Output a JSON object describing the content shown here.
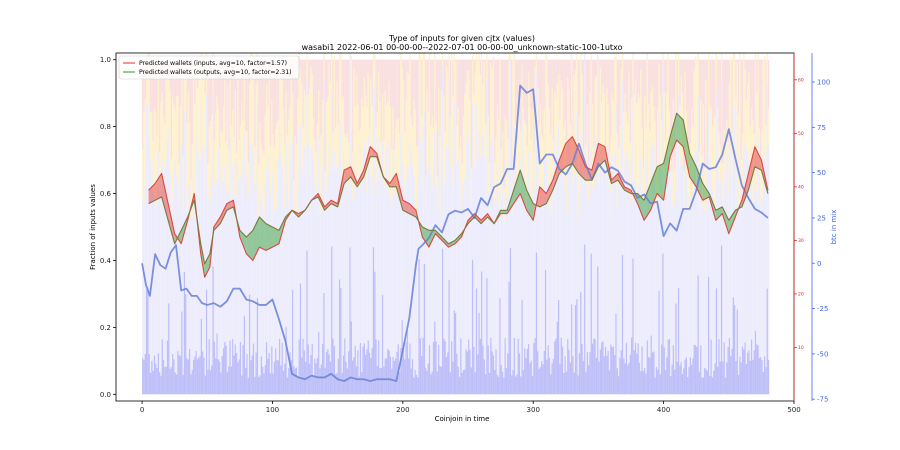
{
  "chart_data": {
    "type": "line",
    "title": "Type of inputs for given cjtx (values)",
    "subtitle": "wasabi1 2022-06-01 00-00-00--2022-07-01 00-00-00_unknown-static-100-1utxo",
    "xlabel": "Coinjoin in time",
    "ylabel": "Fraction of inputs values",
    "ylabel_right": "btc in mix",
    "xlim": [
      -20,
      500
    ],
    "ylim": [
      -0.02,
      1.02
    ],
    "ylim_right_red": [
      0,
      65
    ],
    "ylim_right_blue": [
      -76,
      116
    ],
    "xticks": [
      "0",
      "100",
      "200",
      "300",
      "400",
      "500"
    ],
    "yticks": [
      "0.0",
      "0.2",
      "0.4",
      "0.6",
      "0.8",
      "1.0"
    ],
    "yticks_right_red": [
      "10",
      "20",
      "30",
      "40",
      "50",
      "60"
    ],
    "yticks_right_blue": [
      "-75",
      "-50",
      "-25",
      "0",
      "25",
      "50",
      "75",
      "100"
    ],
    "legend_position": "top-left",
    "grid": false,
    "series": [
      {
        "name": "Predicted wallets (inputs, avg=10, factor=1.57)",
        "color": "#e8504a",
        "x": [
          5,
          10,
          15,
          20,
          25,
          30,
          35,
          40,
          45,
          48,
          52,
          55,
          60,
          65,
          70,
          75,
          80,
          85,
          90,
          95,
          100,
          105,
          110,
          115,
          120,
          125,
          130,
          135,
          140,
          145,
          150,
          155,
          160,
          165,
          170,
          175,
          180,
          185,
          190,
          195,
          200,
          205,
          210,
          215,
          220,
          225,
          230,
          235,
          240,
          245,
          250,
          255,
          260,
          265,
          270,
          275,
          280,
          285,
          290,
          295,
          300,
          305,
          310,
          315,
          320,
          325,
          330,
          335,
          340,
          345,
          350,
          355,
          360,
          365,
          370,
          375,
          380,
          385,
          390,
          395,
          400,
          405,
          410,
          415,
          420,
          425,
          430,
          435,
          440,
          445,
          450,
          455,
          460,
          465,
          470,
          475,
          480
        ],
        "y": [
          0.61,
          0.63,
          0.66,
          0.57,
          0.48,
          0.45,
          0.52,
          0.6,
          0.42,
          0.35,
          0.38,
          0.5,
          0.53,
          0.57,
          0.58,
          0.47,
          0.42,
          0.4,
          0.44,
          0.43,
          0.44,
          0.45,
          0.52,
          0.55,
          0.54,
          0.55,
          0.58,
          0.6,
          0.56,
          0.58,
          0.57,
          0.67,
          0.68,
          0.63,
          0.67,
          0.74,
          0.72,
          0.65,
          0.63,
          0.66,
          0.58,
          0.57,
          0.55,
          0.47,
          0.44,
          0.48,
          0.46,
          0.44,
          0.45,
          0.47,
          0.52,
          0.54,
          0.52,
          0.54,
          0.51,
          0.54,
          0.54,
          0.57,
          0.6,
          0.55,
          0.52,
          0.62,
          0.6,
          0.64,
          0.7,
          0.75,
          0.77,
          0.73,
          0.68,
          0.67,
          0.75,
          0.74,
          0.64,
          0.66,
          0.62,
          0.61,
          0.57,
          0.52,
          0.55,
          0.6,
          0.58,
          0.71,
          0.76,
          0.74,
          0.65,
          0.62,
          0.58,
          0.59,
          0.52,
          0.54,
          0.48,
          0.53,
          0.58,
          0.66,
          0.74,
          0.7,
          0.61
        ],
        "y_outputs": [
          0.57,
          0.58,
          0.59,
          0.52,
          0.45,
          0.49,
          0.53,
          0.58,
          0.45,
          0.39,
          0.42,
          0.49,
          0.51,
          0.55,
          0.56,
          0.49,
          0.47,
          0.49,
          0.53,
          0.51,
          0.5,
          0.49,
          0.53,
          0.55,
          0.53,
          0.55,
          0.58,
          0.59,
          0.55,
          0.57,
          0.56,
          0.63,
          0.65,
          0.62,
          0.65,
          0.71,
          0.71,
          0.65,
          0.62,
          0.62,
          0.55,
          0.54,
          0.53,
          0.5,
          0.49,
          0.49,
          0.47,
          0.45,
          0.46,
          0.48,
          0.51,
          0.53,
          0.51,
          0.53,
          0.51,
          0.55,
          0.55,
          0.61,
          0.67,
          0.61,
          0.57,
          0.56,
          0.57,
          0.61,
          0.66,
          0.68,
          0.69,
          0.66,
          0.64,
          0.64,
          0.68,
          0.7,
          0.63,
          0.64,
          0.61,
          0.6,
          0.6,
          0.58,
          0.63,
          0.68,
          0.69,
          0.77,
          0.84,
          0.82,
          0.72,
          0.68,
          0.63,
          0.6,
          0.55,
          0.56,
          0.52,
          0.55,
          0.56,
          0.61,
          0.68,
          0.67,
          0.6
        ]
      },
      {
        "name": "Predicted wallets (outputs, avg=10, factor=2.31)",
        "color": "#4aa84a"
      },
      {
        "name": "btc in mix",
        "color": "#6680d8",
        "axis": "right-blue",
        "x": [
          0,
          3,
          6,
          10,
          14,
          18,
          22,
          26,
          30,
          34,
          38,
          42,
          46,
          50,
          55,
          60,
          65,
          70,
          75,
          80,
          85,
          90,
          95,
          100,
          105,
          110,
          115,
          120,
          125,
          130,
          135,
          140,
          145,
          150,
          155,
          160,
          165,
          170,
          175,
          180,
          185,
          190,
          195,
          200,
          205,
          210,
          212,
          215,
          220,
          225,
          230,
          235,
          240,
          245,
          250,
          255,
          260,
          265,
          270,
          275,
          280,
          285,
          290,
          295,
          300,
          305,
          310,
          315,
          320,
          325,
          330,
          335,
          340,
          345,
          350,
          355,
          360,
          365,
          370,
          375,
          380,
          385,
          390,
          395,
          400,
          405,
          410,
          415,
          420,
          425,
          430,
          435,
          440,
          445,
          450,
          455,
          460,
          465,
          470,
          475,
          480
        ],
        "y": [
          0,
          -12,
          -18,
          5,
          -1,
          -3,
          6,
          10,
          -15,
          -14,
          -18,
          -18,
          -22,
          -23,
          -22,
          -24,
          -21,
          -14,
          -14,
          -20,
          -21,
          -23,
          -23,
          -20,
          -31,
          -43,
          -61,
          -63,
          -64,
          -62,
          -63,
          -63,
          -61,
          -64,
          -65,
          -63,
          -64,
          -64,
          -65,
          -64,
          -64,
          -64,
          -65,
          -48,
          -30,
          -1,
          8,
          10,
          14,
          21,
          17,
          27,
          29,
          28,
          30,
          25,
          36,
          32,
          42,
          44,
          52,
          52,
          98,
          94,
          96,
          55,
          60,
          60,
          52,
          49,
          55,
          66,
          55,
          46,
          55,
          50,
          53,
          51,
          45,
          43,
          36,
          38,
          33,
          34,
          15,
          22,
          18,
          30,
          30,
          40,
          55,
          52,
          53,
          60,
          74,
          58,
          43,
          36,
          30,
          28,
          25
        ]
      }
    ]
  }
}
